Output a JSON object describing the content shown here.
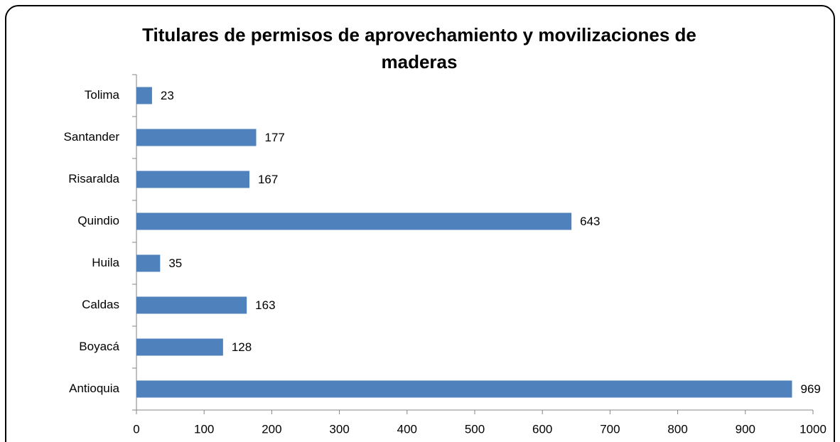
{
  "chart_data": {
    "type": "hbar",
    "title": "Titulares de permisos de aprovechamiento y movilizaciones de maderas",
    "categories": [
      "Antioquia",
      "Boyacá",
      "Caldas",
      "Huila",
      "Quindio",
      "Risaralda",
      "Santander",
      "Tolima"
    ],
    "values": [
      969,
      128,
      163,
      35,
      643,
      167,
      177,
      23
    ],
    "color": "#4f81bd",
    "xlim": [
      0,
      1000
    ],
    "xticks": [
      0,
      100,
      200,
      300,
      400,
      500,
      600,
      700,
      800,
      900,
      1000
    ],
    "grid": false,
    "data_labels": true
  }
}
